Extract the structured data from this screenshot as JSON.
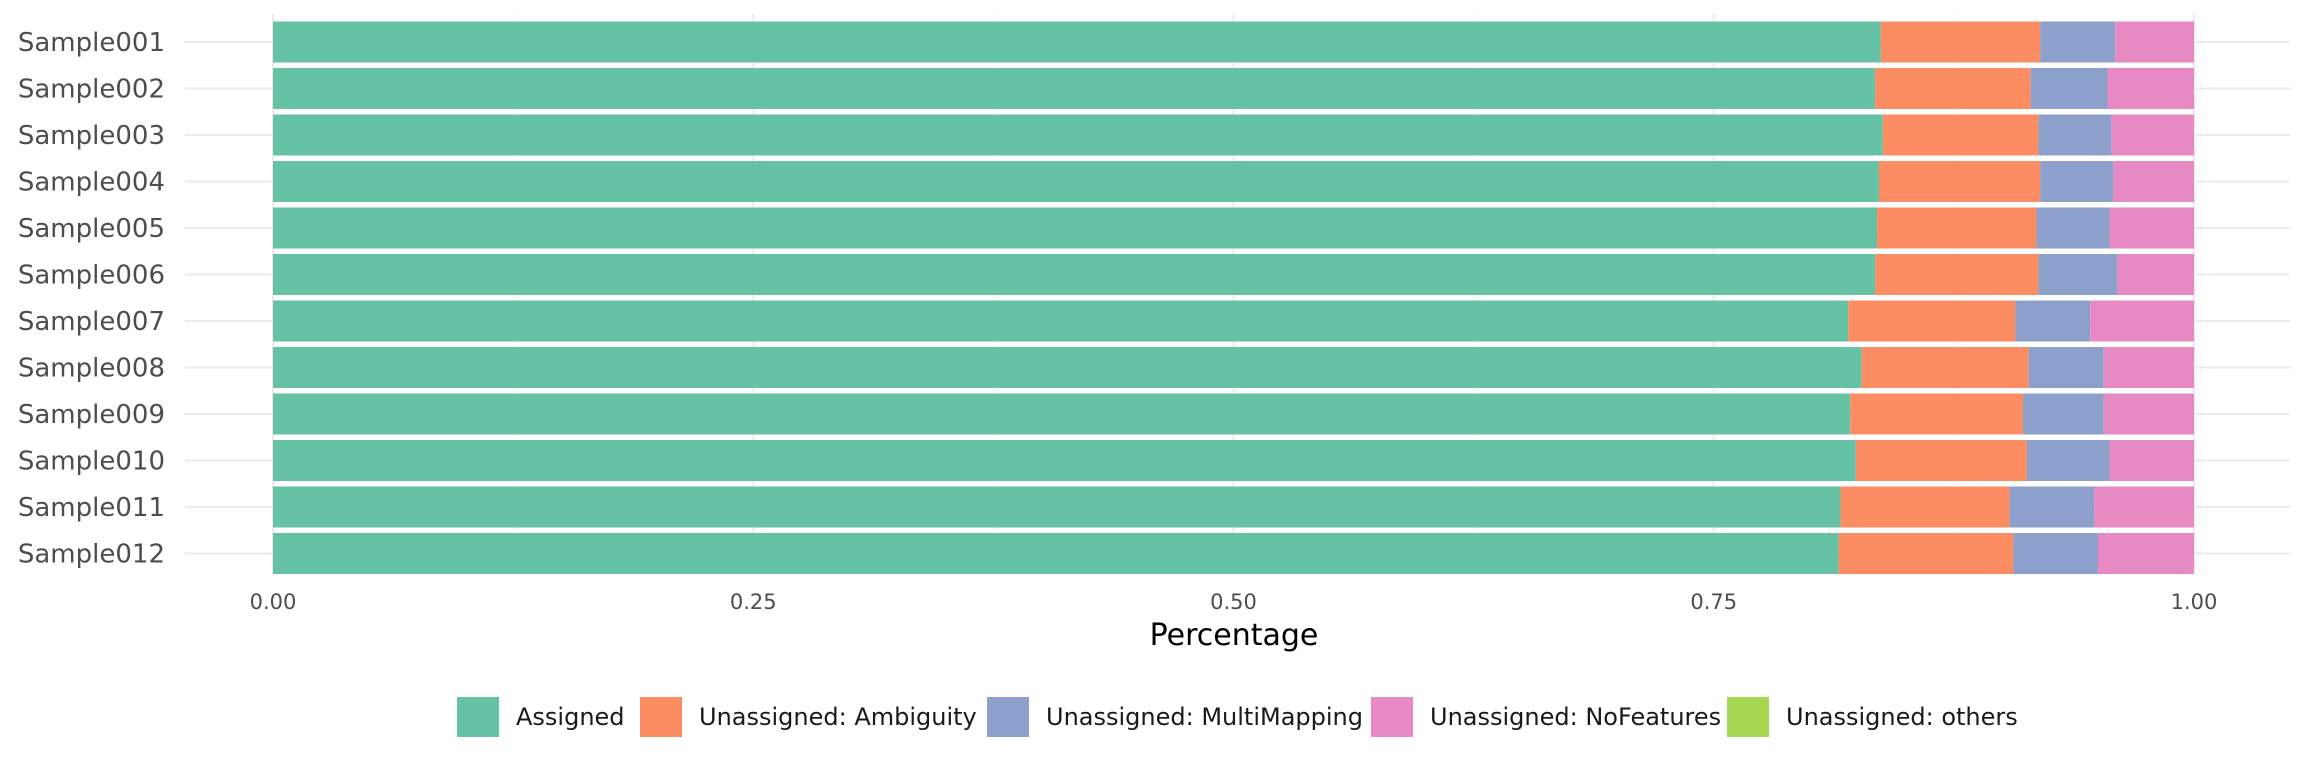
{
  "chart_data": {
    "type": "bar",
    "orientation": "horizontal",
    "stacked": true,
    "categories": [
      "Sample001",
      "Sample002",
      "Sample003",
      "Sample004",
      "Sample005",
      "Sample006",
      "Sample007",
      "Sample008",
      "Sample009",
      "Sample010",
      "Sample011",
      "Sample012"
    ],
    "series": [
      {
        "name": "Assigned",
        "color": "#66c2a5",
        "values": [
          0.837,
          0.834,
          0.838,
          0.836,
          0.835,
          0.834,
          0.82,
          0.827,
          0.821,
          0.824,
          0.816,
          0.815
        ]
      },
      {
        "name": "Unassigned: Ambiguity",
        "color": "#fc8d62",
        "values": [
          0.083,
          0.081,
          0.081,
          0.084,
          0.083,
          0.085,
          0.087,
          0.087,
          0.09,
          0.089,
          0.088,
          0.091
        ]
      },
      {
        "name": "Unassigned: MultiMapping",
        "color": "#8da0cb",
        "values": [
          0.039,
          0.04,
          0.038,
          0.038,
          0.038,
          0.041,
          0.039,
          0.039,
          0.042,
          0.043,
          0.044,
          0.044
        ]
      },
      {
        "name": "Unassigned: NoFeatures",
        "color": "#e78ac3",
        "values": [
          0.041,
          0.045,
          0.043,
          0.042,
          0.044,
          0.04,
          0.054,
          0.047,
          0.047,
          0.044,
          0.052,
          0.05
        ]
      },
      {
        "name": "Unassigned: others",
        "color": "#a6d854",
        "values": [
          0,
          0,
          0,
          0,
          0,
          0,
          0,
          0,
          0,
          0,
          0,
          0
        ]
      }
    ],
    "x_ticks": [
      "0.00",
      "0.25",
      "0.50",
      "0.75",
      "1.00"
    ],
    "x_tick_values": [
      0,
      0.25,
      0.5,
      0.75,
      1.0
    ],
    "xlabel": "Percentage",
    "ylabel": "",
    "xlim": [
      0,
      1
    ],
    "grid": true,
    "legend_position": "bottom"
  }
}
